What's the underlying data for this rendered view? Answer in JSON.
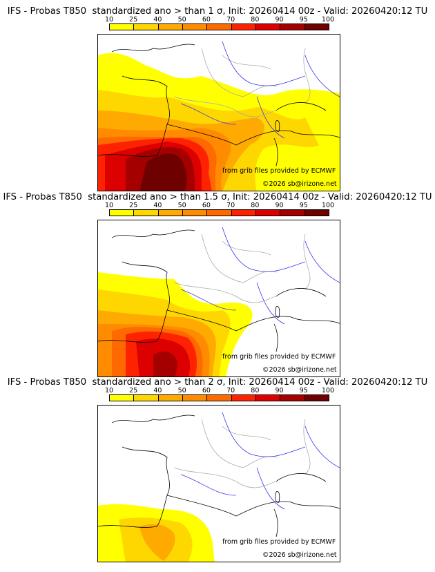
{
  "colorbar": {
    "ticks": [
      "10",
      "25",
      "40",
      "50",
      "60",
      "70",
      "80",
      "90",
      "95",
      "100"
    ],
    "colors": [
      "#ffff00",
      "#ffd700",
      "#ffaa00",
      "#ff8c00",
      "#ff6a00",
      "#ff2200",
      "#dd0000",
      "#a50000",
      "#6e0000"
    ]
  },
  "panels": [
    {
      "title": "IFS - Probas T850  standardized ano > than 1 σ, Init: 20260414 00z - Valid: 20260420:12 TU",
      "threshold_sigma": 1
    },
    {
      "title": "IFS - Probas T850  standardized ano > than 1.5 σ, Init: 20260414 00z - Valid: 20260420:12 TU",
      "threshold_sigma": 1.5
    },
    {
      "title": "IFS - Probas T850  standardized ano > than 2 σ, Init: 20260414 00z - Valid: 20260420:12 TU",
      "threshold_sigma": 2
    }
  ],
  "credits": {
    "source": "from grib files provided by ECMWF",
    "copyright": "©2026 sb@irizone.net"
  }
}
